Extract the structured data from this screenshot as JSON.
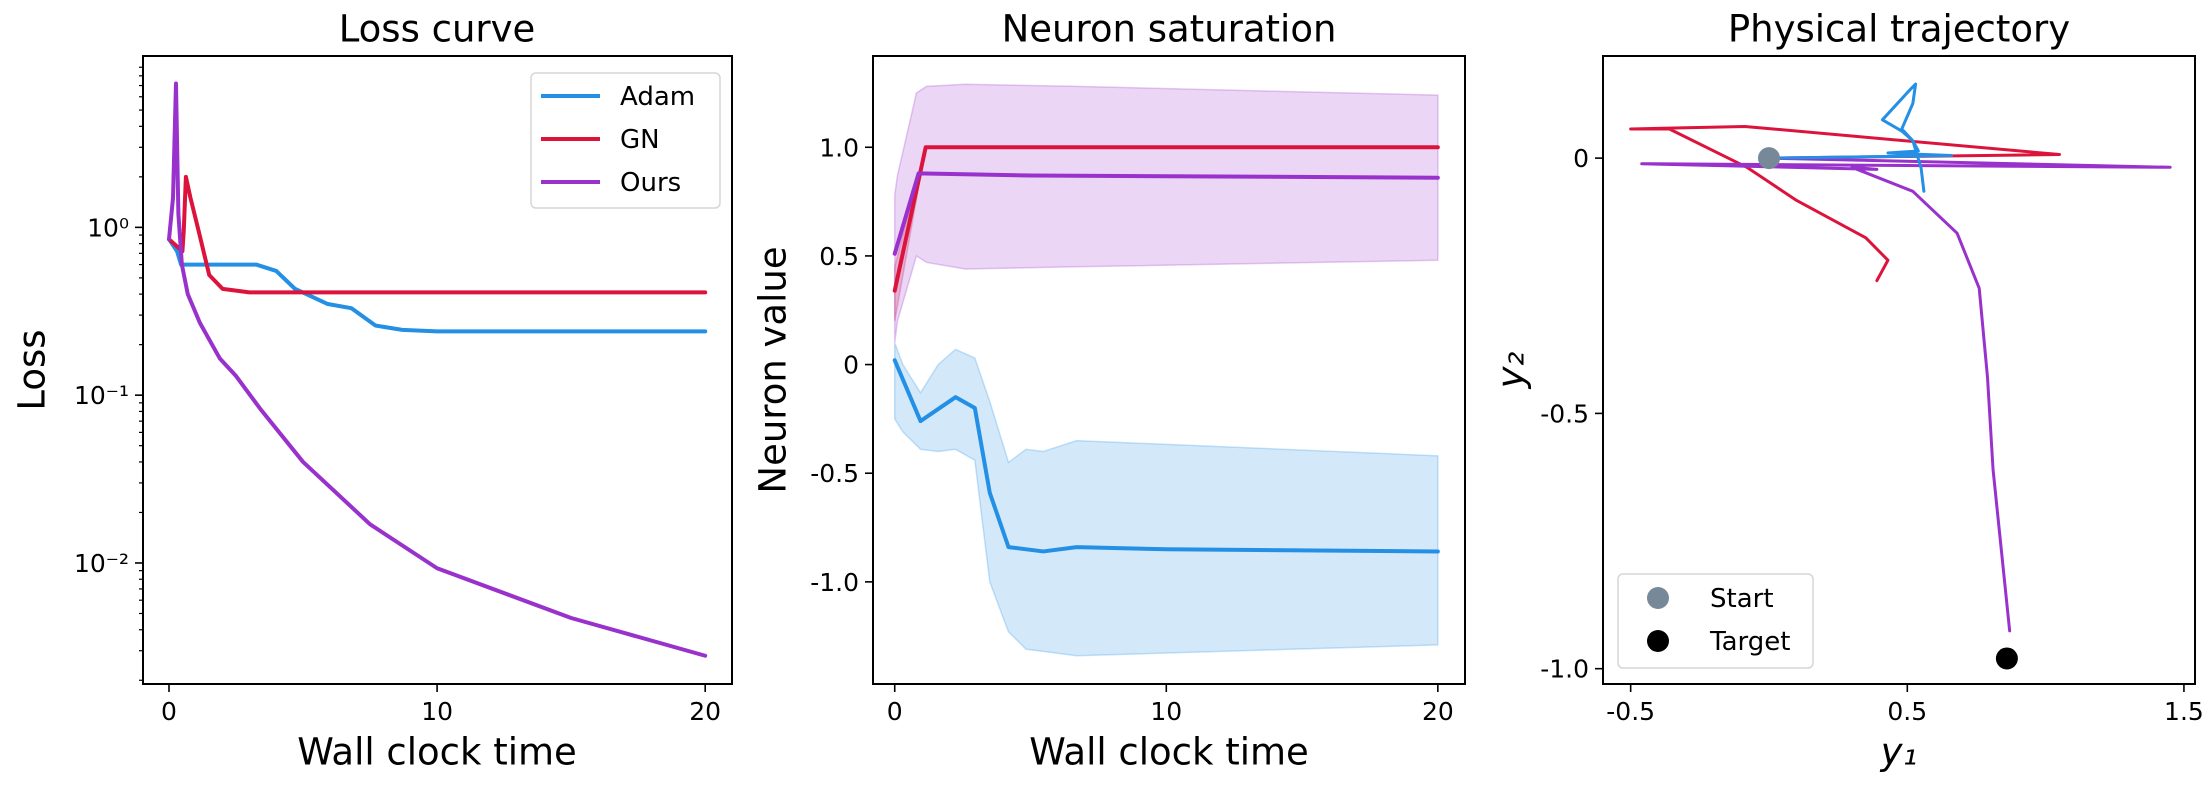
{
  "colors": {
    "Adam": "#2390e6",
    "GN": "#dc143c",
    "Ours": "#9932cc",
    "start": "#778899",
    "target": "#000000"
  },
  "chart_data": [
    {
      "type": "line",
      "title": "Loss curve",
      "xlabel": "Wall clock time",
      "ylabel": "Loss",
      "xscale": "linear",
      "yscale": "log",
      "xlim": [
        -0.97,
        21.0
      ],
      "ylim": [
        0.0019,
        10.5
      ],
      "xticks": [
        0,
        10,
        20
      ],
      "xtick_labels": [
        "0",
        "10",
        "20"
      ],
      "yticks": [
        1,
        0.1,
        0.01
      ],
      "ytick_labels": [
        "10⁰",
        "10⁻¹",
        "10⁻²"
      ],
      "grid": false,
      "legend": {
        "placement": "upper right",
        "entries": [
          "Adam",
          "GN",
          "Ours"
        ]
      },
      "series": [
        {
          "name": "Adam",
          "x": [
            0,
            0.3,
            0.45,
            1,
            2,
            3.25,
            4.0,
            4.7,
            5.9,
            6.8,
            7.7,
            8.7,
            10,
            15,
            20
          ],
          "y": [
            0.85,
            0.72,
            0.6,
            0.6,
            0.6,
            0.6,
            0.55,
            0.43,
            0.35,
            0.33,
            0.26,
            0.245,
            0.24,
            0.24,
            0.24
          ]
        },
        {
          "name": "GN",
          "x": [
            0,
            0.5,
            0.55,
            0.63,
            0.8,
            1.1,
            1.5,
            2.0,
            3.0,
            10,
            20
          ],
          "y": [
            0.85,
            0.72,
            0.95,
            2.0,
            1.5,
            0.96,
            0.52,
            0.43,
            0.41,
            0.41,
            0.41
          ]
        },
        {
          "name": "Ours",
          "x": [
            0,
            0.15,
            0.26,
            0.35,
            0.48,
            0.7,
            1.15,
            1.9,
            2.5,
            3.4,
            5,
            7.5,
            10,
            15,
            20
          ],
          "y": [
            0.85,
            1.5,
            7.2,
            1.2,
            0.6,
            0.4,
            0.27,
            0.165,
            0.13,
            0.083,
            0.04,
            0.017,
            0.0093,
            0.0047,
            0.0028
          ]
        }
      ]
    },
    {
      "type": "line",
      "title": "Neuron saturation",
      "xlabel": "Wall clock time",
      "ylabel": "Neuron value",
      "xlim": [
        -0.8,
        21.0
      ],
      "ylim": [
        -1.47,
        1.42
      ],
      "xticks": [
        0,
        10,
        20
      ],
      "xtick_labels": [
        "0",
        "10",
        "20"
      ],
      "yticks": [
        1.0,
        0.5,
        0,
        -0.5,
        -1.0
      ],
      "ytick_labels": [
        "1.0",
        "0.5",
        "0",
        "-0.5",
        "-1.0"
      ],
      "grid": false,
      "series": [
        {
          "name": "Adam",
          "x": [
            0,
            0.95,
            2.24,
            2.95,
            3.5,
            4.19,
            5.47,
            6.7,
            10,
            20
          ],
          "y": [
            0.02,
            -0.26,
            -0.15,
            -0.2,
            -0.59,
            -0.84,
            -0.86,
            -0.84,
            -0.85,
            -0.86
          ],
          "band_x": [
            0,
            0.3,
            0.95,
            1.6,
            2.24,
            2.95,
            3.5,
            4.19,
            4.84,
            5.47,
            6.7,
            20
          ],
          "band_upper": [
            0.1,
            0.0,
            -0.13,
            0.0,
            0.07,
            0.03,
            -0.17,
            -0.45,
            -0.39,
            -0.4,
            -0.35,
            -0.42
          ],
          "band_lower": [
            -0.25,
            -0.31,
            -0.39,
            -0.4,
            -0.39,
            -0.44,
            -1.0,
            -1.23,
            -1.31,
            -1.32,
            -1.34,
            -1.29
          ]
        },
        {
          "name": "GN",
          "x": [
            0,
            1.14,
            20
          ],
          "y": [
            0.34,
            1.0,
            1.0
          ],
          "band_x": [
            0,
            1.14,
            20
          ],
          "band_upper": [
            0.45,
            1.0,
            1.0
          ],
          "band_lower": [
            0.2,
            1.0,
            1.0
          ]
        },
        {
          "name": "Ours",
          "x": [
            0,
            0.88,
            5,
            20
          ],
          "y": [
            0.51,
            0.88,
            0.87,
            0.86
          ],
          "band_x": [
            0,
            0.1,
            0.8,
            1.17,
            2.6,
            6.7,
            20
          ],
          "band_upper": [
            0.78,
            0.87,
            1.25,
            1.28,
            1.29,
            1.28,
            1.24
          ],
          "band_lower": [
            0.1,
            0.2,
            0.5,
            0.47,
            0.44,
            0.45,
            0.48
          ]
        }
      ]
    },
    {
      "type": "line",
      "title": "Physical trajectory",
      "xlabel": "y₁",
      "ylabel": "y₂",
      "xlim": [
        -0.6,
        1.54
      ],
      "ylim": [
        -1.03,
        0.2
      ],
      "xticks": [
        -0.5,
        0.5,
        1.5
      ],
      "xtick_labels": [
        "-0.5",
        "0.5",
        "1.5"
      ],
      "yticks": [
        0,
        -0.5,
        -1.0
      ],
      "ytick_labels": [
        "0",
        "-0.5",
        "-1.0"
      ],
      "grid": false,
      "legend": {
        "placement": "lower left",
        "entries": [
          "Start",
          "Target"
        ]
      },
      "series": [
        {
          "name": "GN",
          "x": [
            0,
            1.05,
            -0.087,
            -0.5,
            -0.36,
            -0.08,
            0.1,
            0.35,
            0.43,
            0.41,
            0.39
          ],
          "y": [
            0,
            0.007,
            0.062,
            0.057,
            0.057,
            -0.018,
            -0.083,
            -0.156,
            -0.2,
            -0.22,
            -0.24
          ]
        },
        {
          "name": "Ours",
          "x": [
            0,
            1.45,
            -0.46,
            0.39,
            0.3,
            0.52,
            0.68,
            0.76,
            0.79,
            0.81,
            0.87
          ],
          "y": [
            0,
            -0.018,
            -0.011,
            -0.022,
            -0.018,
            -0.065,
            -0.147,
            -0.255,
            -0.43,
            -0.61,
            -0.926
          ]
        },
        {
          "name": "Adam",
          "x": [
            0,
            0.66,
            0.43,
            0.54,
            0.52,
            0.48,
            0.41,
            0.51,
            0.53,
            0.52,
            0.48,
            0.52,
            0.55,
            0.56
          ],
          "y": [
            0,
            0.005,
            0.01,
            0.014,
            0.034,
            0.053,
            0.075,
            0.134,
            0.145,
            0.107,
            0.057,
            0.034,
            -0.02,
            -0.065
          ]
        }
      ],
      "points": [
        {
          "name": "Start",
          "x": 0,
          "y": 0
        },
        {
          "name": "Target",
          "x": 0.86,
          "y": -0.98
        }
      ]
    }
  ]
}
